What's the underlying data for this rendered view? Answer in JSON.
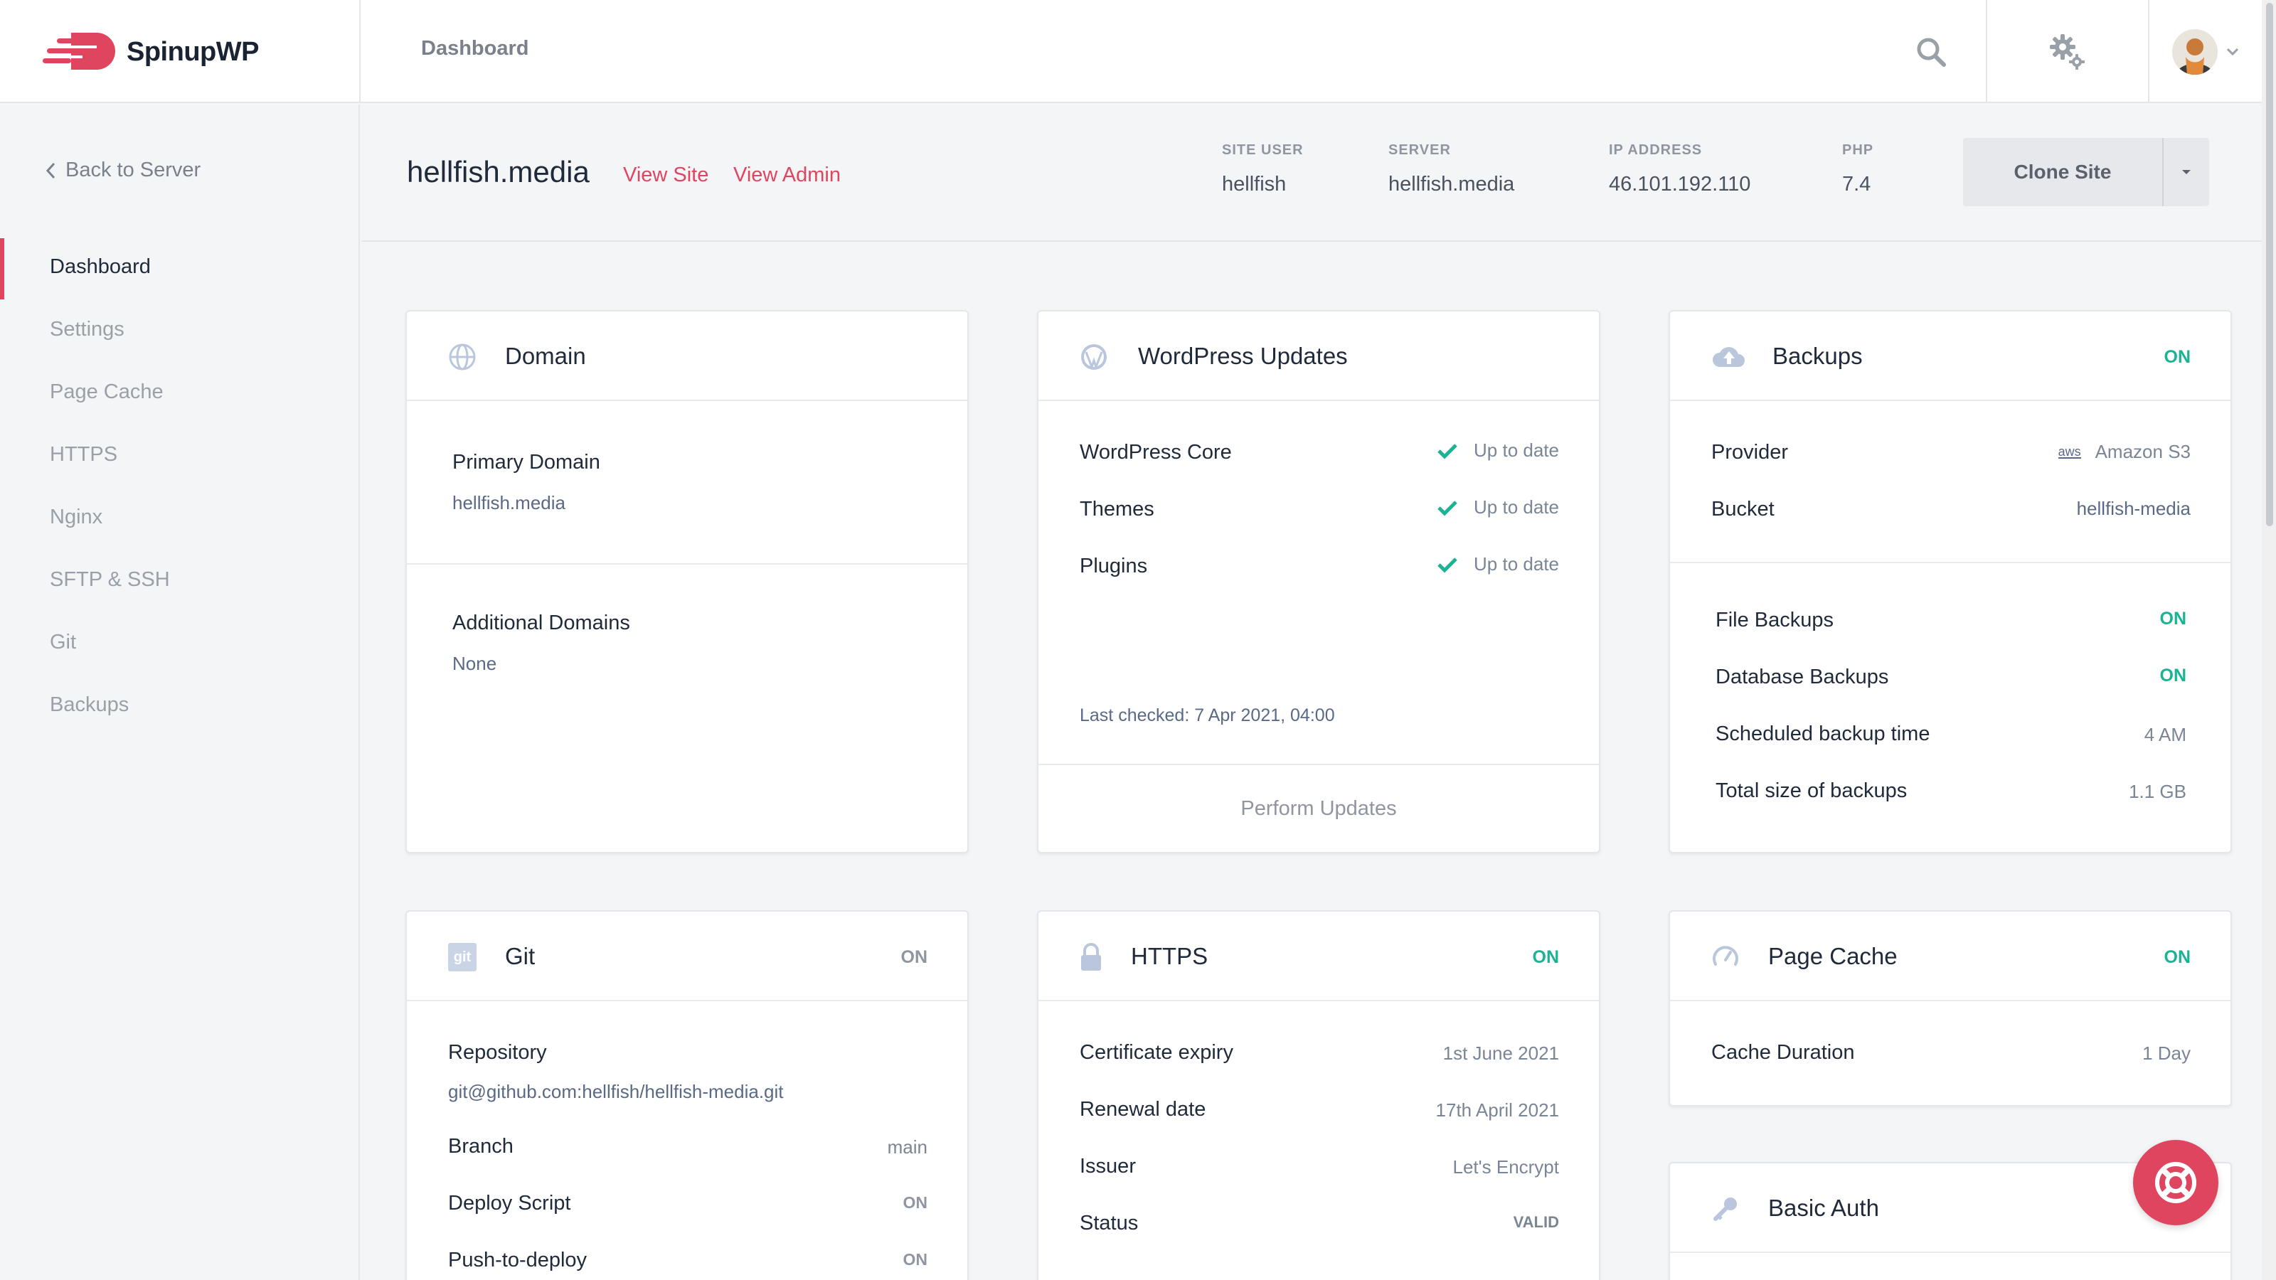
{
  "app": {
    "brand": "SpinupWP",
    "page_title": "Dashboard"
  },
  "topbar": {
    "icons": [
      "search-icon",
      "gear-icon",
      "avatar",
      "chevron-down-icon"
    ]
  },
  "sidebar": {
    "back_label": "Back to Server",
    "items": [
      {
        "label": "Dashboard",
        "active": true
      },
      {
        "label": "Settings"
      },
      {
        "label": "Page Cache"
      },
      {
        "label": "HTTPS"
      },
      {
        "label": "Nginx"
      },
      {
        "label": "SFTP & SSH"
      },
      {
        "label": "Git"
      },
      {
        "label": "Backups"
      }
    ]
  },
  "site": {
    "name": "hellfish.media",
    "view_site": "View Site",
    "view_admin": "View Admin",
    "meta": [
      {
        "label": "SITE USER",
        "value": "hellfish"
      },
      {
        "label": "SERVER",
        "value": "hellfish.media"
      },
      {
        "label": "IP ADDRESS",
        "value": "46.101.192.110"
      },
      {
        "label": "PHP",
        "value": "7.4"
      }
    ],
    "clone_label": "Clone Site"
  },
  "domain": {
    "title": "Domain",
    "primary_label": "Primary Domain",
    "primary_value": "hellfish.media",
    "additional_label": "Additional Domains",
    "additional_value": "None"
  },
  "wp_updates": {
    "title": "WordPress Updates",
    "rows": [
      {
        "label": "WordPress Core",
        "status": "Up to date"
      },
      {
        "label": "Themes",
        "status": "Up to date"
      },
      {
        "label": "Plugins",
        "status": "Up to date"
      }
    ],
    "last_checked": "Last checked: 7 Apr 2021, 04:00",
    "perform_label": "Perform Updates"
  },
  "backups": {
    "title": "Backups",
    "status": "ON",
    "provider_label": "Provider",
    "provider_value": "Amazon S3",
    "provider_icon_text": "aws",
    "bucket_label": "Bucket",
    "bucket_value": "hellfish-media",
    "file_label": "File Backups",
    "file_status": "ON",
    "db_label": "Database Backups",
    "db_status": "ON",
    "time_label": "Scheduled backup time",
    "time_value": "4 AM",
    "size_label": "Total size of backups",
    "size_value": "1.1 GB"
  },
  "git": {
    "title": "Git",
    "status": "ON",
    "icon_text": "git",
    "repo_label": "Repository",
    "repo_value": "git@github.com:hellfish/hellfish-media.git",
    "branch_label": "Branch",
    "branch_value": "main",
    "deploy_label": "Deploy Script",
    "deploy_status": "ON",
    "push_label": "Push-to-deploy",
    "push_status": "ON"
  },
  "https": {
    "title": "HTTPS",
    "status": "ON",
    "expiry_label": "Certificate expiry",
    "expiry_value": "1st June 2021",
    "renewal_label": "Renewal date",
    "renewal_value": "17th April 2021",
    "issuer_label": "Issuer",
    "issuer_value": "Let's Encrypt",
    "status_label": "Status",
    "status_value": "VALID"
  },
  "page_cache": {
    "title": "Page Cache",
    "status": "ON",
    "duration_label": "Cache Duration",
    "duration_value": "1 Day"
  },
  "basic_auth": {
    "title": "Basic Auth"
  },
  "colors": {
    "accent": "#e0455f",
    "on": "#1ab394",
    "text": "#1f2a3a",
    "muted": "#7a8595"
  }
}
